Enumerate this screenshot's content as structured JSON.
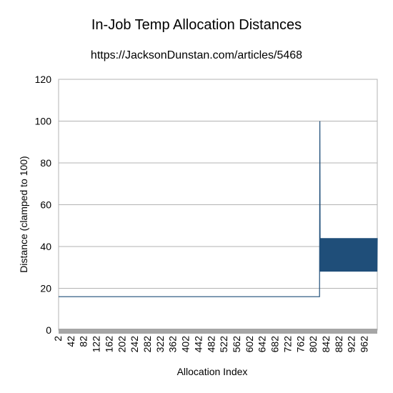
{
  "chart_data": {
    "type": "line",
    "title": "In-Job Temp Allocation Distances",
    "subtitle": "https://JacksonDunstan.com/articles/5468",
    "xlabel": "Allocation Index",
    "ylabel": "Distance (clamped to 100)",
    "ylim": [
      0,
      120
    ],
    "yticks": [
      0,
      20,
      40,
      60,
      80,
      100,
      120
    ],
    "xlim": [
      2,
      1001
    ],
    "xticks": [
      2,
      42,
      82,
      122,
      162,
      202,
      242,
      282,
      322,
      362,
      402,
      442,
      482,
      522,
      562,
      602,
      642,
      682,
      722,
      762,
      802,
      842,
      882,
      922,
      962
    ],
    "grid": true,
    "legend": "none",
    "series_color": "#1f4e79",
    "series": [
      {
        "segments": [
          {
            "from": 2,
            "to": 820,
            "value": 16
          },
          {
            "at": 821,
            "value": 100
          },
          {
            "from": 822,
            "to": 1001,
            "low": 28,
            "high": 44,
            "period": 2,
            "note_pattern": "alternating"
          }
        ]
      }
    ]
  }
}
